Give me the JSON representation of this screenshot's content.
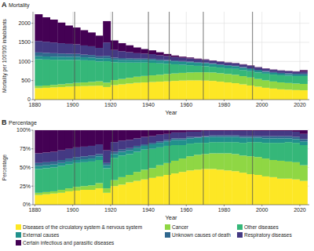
{
  "chart_data": [
    {
      "type": "bar",
      "stacked": true,
      "panel": "A",
      "title": "Mortality",
      "xlabel": "Year",
      "ylabel": "Mortality per 100'000 inhabitants",
      "x": [
        1882,
        1886,
        1890,
        1894,
        1898,
        1902,
        1906,
        1910,
        1914,
        1918,
        1922,
        1926,
        1930,
        1934,
        1938,
        1942,
        1946,
        1950,
        1954,
        1958,
        1962,
        1966,
        1970,
        1974,
        1978,
        1982,
        1986,
        1990,
        1994,
        1998,
        2002,
        2006,
        2010,
        2014,
        2018,
        2022
      ],
      "xlim": [
        1879,
        2025
      ],
      "xticks": [
        1880,
        1900,
        1920,
        1940,
        1960,
        1980,
        2000,
        2020
      ],
      "ylim": [
        0,
        2300
      ],
      "yticks": [
        0,
        500,
        1000,
        1500,
        2000
      ],
      "grid": true,
      "vlines": [
        1901,
        1921,
        1940,
        1951,
        1969,
        1995
      ],
      "series": [
        {
          "color": "#fde725",
          "values": [
            300,
            310,
            320,
            330,
            340,
            350,
            355,
            360,
            365,
            330,
            380,
            400,
            420,
            440,
            450,
            460,
            470,
            480,
            490,
            500,
            505,
            505,
            500,
            490,
            470,
            450,
            430,
            400,
            370,
            340,
            310,
            290,
            270,
            260,
            250,
            245
          ]
        },
        {
          "color": "#8fd744",
          "values": [
            55,
            60,
            65,
            72,
            80,
            90,
            95,
            105,
            115,
            115,
            130,
            140,
            150,
            160,
            170,
            175,
            180,
            190,
            195,
            200,
            205,
            210,
            215,
            220,
            220,
            220,
            220,
            215,
            210,
            200,
            195,
            185,
            180,
            175,
            170,
            165
          ]
        },
        {
          "color": "#35b779",
          "values": [
            700,
            680,
            660,
            640,
            620,
            600,
            580,
            560,
            520,
            560,
            470,
            430,
            400,
            370,
            350,
            330,
            300,
            270,
            240,
            210,
            190,
            170,
            160,
            150,
            150,
            150,
            155,
            160,
            165,
            170,
            175,
            180,
            185,
            190,
            195,
            205
          ]
        },
        {
          "color": "#21918c",
          "values": [
            80,
            80,
            80,
            80,
            80,
            80,
            78,
            78,
            80,
            80,
            70,
            72,
            72,
            70,
            72,
            75,
            72,
            75,
            78,
            80,
            80,
            78,
            80,
            75,
            70,
            68,
            65,
            60,
            55,
            50,
            48,
            45,
            42,
            40,
            40,
            40
          ]
        },
        {
          "color": "#31688e",
          "values": [
            100,
            95,
            90,
            85,
            80,
            78,
            70,
            65,
            55,
            60,
            50,
            45,
            40,
            35,
            32,
            30,
            28,
            25,
            22,
            20,
            18,
            16,
            15,
            15,
            15,
            15,
            16,
            18,
            20,
            20,
            22,
            22,
            24,
            24,
            25,
            26
          ]
        },
        {
          "color": "#443983",
          "values": [
            300,
            290,
            280,
            270,
            260,
            250,
            240,
            230,
            220,
            350,
            200,
            180,
            160,
            140,
            130,
            120,
            110,
            100,
            90,
            85,
            80,
            75,
            70,
            65,
            62,
            60,
            60,
            62,
            62,
            60,
            58,
            56,
            55,
            52,
            50,
            50
          ]
        },
        {
          "color": "#440154",
          "values": [
            700,
            640,
            600,
            540,
            480,
            440,
            400,
            360,
            320,
            560,
            250,
            210,
            180,
            150,
            120,
            100,
            80,
            55,
            40,
            30,
            25,
            20,
            15,
            12,
            10,
            10,
            10,
            12,
            12,
            10,
            10,
            10,
            10,
            10,
            12,
            40
          ]
        }
      ]
    },
    {
      "type": "bar",
      "stacked": true,
      "panel": "B",
      "title": "Percentage",
      "xlabel": "Year",
      "ylabel": "Percentage",
      "x": [
        1882,
        1886,
        1890,
        1894,
        1898,
        1902,
        1906,
        1910,
        1914,
        1918,
        1922,
        1926,
        1930,
        1934,
        1938,
        1942,
        1946,
        1950,
        1954,
        1958,
        1962,
        1966,
        1970,
        1974,
        1978,
        1982,
        1986,
        1990,
        1994,
        1998,
        2002,
        2006,
        2010,
        2014,
        2018,
        2022
      ],
      "xlim": [
        1879,
        2025
      ],
      "xticks": [
        1880,
        1900,
        1920,
        1940,
        1960,
        1980,
        2000,
        2020
      ],
      "ylim": [
        0,
        100
      ],
      "yticks": [
        {
          "value": 0,
          "label": "0%"
        },
        {
          "value": 25,
          "label": "25%"
        },
        {
          "value": 50,
          "label": "50%"
        },
        {
          "value": 75,
          "label": "75%"
        },
        {
          "value": 100,
          "label": "100%"
        }
      ],
      "grid": true,
      "legend": "bottom",
      "vlines": [
        1901,
        1921,
        1940,
        1951,
        1969,
        1995
      ],
      "series": [
        {
          "name": "Diseases of the circulatory system & nervous system",
          "color": "#fde725",
          "values": [
            13,
            14,
            15,
            16,
            18,
            19,
            20,
            20,
            22,
            16,
            25,
            27,
            30,
            32,
            34,
            36,
            38,
            40,
            42,
            44,
            46,
            47,
            48,
            48,
            47,
            46,
            45,
            43,
            41,
            40,
            38,
            37,
            35,
            35,
            34,
            32
          ]
        },
        {
          "name": "Cancer",
          "color": "#8fd744",
          "values": [
            3,
            3,
            3,
            4,
            4,
            5,
            5,
            6,
            7,
            6,
            8,
            10,
            10,
            12,
            13,
            13,
            15,
            16,
            17,
            18,
            19,
            20,
            20,
            21,
            22,
            23,
            23,
            23,
            24,
            24,
            24,
            23,
            24,
            23,
            23,
            21
          ]
        },
        {
          "name": "Other diseases",
          "color": "#35b779",
          "values": [
            32,
            32,
            32,
            32,
            32,
            32,
            32,
            32,
            31,
            27,
            30,
            29,
            28,
            27,
            27,
            26,
            24,
            23,
            21,
            18,
            17,
            16,
            15,
            15,
            15,
            15,
            16,
            17,
            19,
            20,
            21,
            23,
            24,
            26,
            26,
            27
          ]
        },
        {
          "name": "External causes",
          "color": "#21918c",
          "values": [
            4,
            4,
            4,
            4,
            4,
            4,
            4,
            4,
            5,
            4,
            5,
            5,
            5,
            5,
            5,
            6,
            6,
            6,
            7,
            7,
            7,
            7,
            8,
            7,
            7,
            7,
            7,
            7,
            6,
            6,
            6,
            6,
            6,
            5,
            5,
            5
          ]
        },
        {
          "name": "Unknown causes of death",
          "color": "#31688e",
          "values": [
            4,
            4,
            4,
            4,
            4,
            4,
            4,
            4,
            3,
            3,
            3,
            3,
            3,
            3,
            2,
            2,
            2,
            2,
            2,
            2,
            2,
            1,
            1,
            2,
            2,
            2,
            2,
            2,
            2,
            2,
            3,
            3,
            3,
            3,
            3,
            3
          ]
        },
        {
          "name": "Respiratory diseases",
          "color": "#443983",
          "values": [
            13,
            13,
            13,
            13,
            13,
            13,
            13,
            13,
            13,
            17,
            13,
            12,
            11,
            10,
            10,
            9,
            9,
            8,
            8,
            8,
            7,
            7,
            7,
            6,
            6,
            6,
            6,
            7,
            7,
            7,
            7,
            7,
            7,
            7,
            7,
            7
          ]
        },
        {
          "name": "Certain infectious and parasitic diseases",
          "color": "#440154",
          "values": [
            31,
            30,
            29,
            27,
            25,
            23,
            22,
            21,
            19,
            27,
            16,
            14,
            13,
            11,
            9,
            8,
            6,
            5,
            3,
            3,
            2,
            2,
            1,
            1,
            1,
            1,
            1,
            1,
            1,
            1,
            1,
            1,
            1,
            1,
            2,
            5
          ]
        }
      ]
    }
  ]
}
